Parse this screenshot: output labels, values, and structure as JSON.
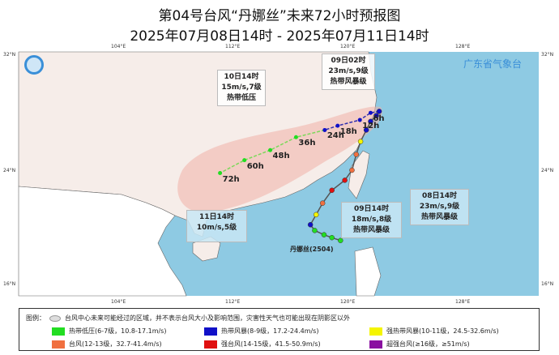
{
  "header": {
    "title": "第04号台风“丹娜丝”未来72小时预报图",
    "subtitle": "2025年07月08日14时 - 2025年07月11日14时"
  },
  "brand": "广东省气象台",
  "axes": {
    "lon_ticks": [
      "104°E",
      "112°E",
      "120°E",
      "128°E"
    ],
    "lat_ticks": [
      "32°N",
      "24°N",
      "16°N"
    ]
  },
  "typhoon_label": "丹娜丝(2504)",
  "colors": {
    "sea": "#8ecae3",
    "land_china": "#f6ede9",
    "land_other": "#ffffff",
    "cone": "#f0b8b0",
    "td": "#22dd22",
    "ts": "#1010c8",
    "sts": "#f5f500",
    "ty": "#f07040",
    "sty": "#e01010",
    "superty": "#8a10a0"
  },
  "observed_track": [
    {
      "lon": 119.7,
      "lat": 19.1,
      "level": "td"
    },
    {
      "lon": 119.1,
      "lat": 19.3,
      "level": "td"
    },
    {
      "lon": 118.55,
      "lat": 19.5,
      "level": "td"
    },
    {
      "lon": 117.9,
      "lat": 19.8,
      "level": "td"
    },
    {
      "lon": 117.6,
      "lat": 20.2,
      "level": "ts"
    },
    {
      "lon": 118.0,
      "lat": 20.9,
      "level": "sts"
    },
    {
      "lon": 118.45,
      "lat": 21.7,
      "level": "ty"
    },
    {
      "lon": 119.1,
      "lat": 22.6,
      "level": "sty"
    },
    {
      "lon": 120.0,
      "lat": 23.3,
      "level": "sty"
    },
    {
      "lon": 120.5,
      "lat": 24.0,
      "level": "ty"
    },
    {
      "lon": 120.8,
      "lat": 25.1,
      "level": "ty"
    },
    {
      "lon": 121.1,
      "lat": 26.0,
      "level": "sts"
    },
    {
      "lon": 121.5,
      "lat": 26.8,
      "level": "ts"
    },
    {
      "lon": 121.8,
      "lat": 27.4,
      "level": "ts"
    },
    {
      "lon": 122.2,
      "lat": 27.8,
      "level": "ts"
    },
    {
      "lon": 122.4,
      "lat": 28.1,
      "level": "ts"
    }
  ],
  "forecast": [
    {
      "label": "6h",
      "lon": 121.8,
      "lat": 28.0,
      "level": "ts"
    },
    {
      "label": "12h",
      "lon": 121.05,
      "lat": 27.5,
      "level": "ts"
    },
    {
      "label": "18h",
      "lon": 119.5,
      "lat": 27.1,
      "level": "ts"
    },
    {
      "label": "24h",
      "lon": 118.6,
      "lat": 26.8,
      "level": "ts"
    },
    {
      "label": "36h",
      "lon": 116.6,
      "lat": 26.3,
      "level": "td"
    },
    {
      "label": "48h",
      "lon": 114.8,
      "lat": 25.4,
      "level": "td"
    },
    {
      "label": "60h",
      "lon": 113.0,
      "lat": 24.7,
      "level": "td"
    },
    {
      "label": "72h",
      "lon": 111.3,
      "lat": 23.8,
      "level": "td"
    }
  ],
  "callouts": [
    {
      "time": "10日14时",
      "wind": "15m/s,7级",
      "level": "热带低压"
    },
    {
      "time": "09日02时",
      "wind": "23m/s,9级",
      "level": "热带风暴级"
    },
    {
      "time": "08日14时",
      "wind": "23m/s,9级",
      "level": "热带风暴级"
    },
    {
      "time": "09日14时",
      "wind": "18m/s,8级",
      "level": "热带风暴级"
    },
    {
      "time": "11日14时",
      "wind": "10m/s,5级",
      "level": ""
    }
  ],
  "legend": {
    "title": "图例：",
    "cone_note": "台风中心未来可能经过的区域，并不表示台风大小及影响范围，灾害性天气也可能出现在阴影区以外",
    "items": [
      {
        "label": "热带低压(6-7级，10.8-17.1m/s)",
        "color": "#22dd22"
      },
      {
        "label": "热带风暴(8-9级，17.2-24.4m/s)",
        "color": "#1010c8"
      },
      {
        "label": "强热带风暴(10-11级，24.5-32.6m/s)",
        "color": "#f5f500"
      },
      {
        "label": "台风(12-13级，32.7-41.4m/s)",
        "color": "#f07040"
      },
      {
        "label": "强台风(14-15级，41.5-50.9m/s)",
        "color": "#e01010"
      },
      {
        "label": "超强台风(≥16级，≥51m/s)",
        "color": "#8a10a0"
      }
    ]
  }
}
